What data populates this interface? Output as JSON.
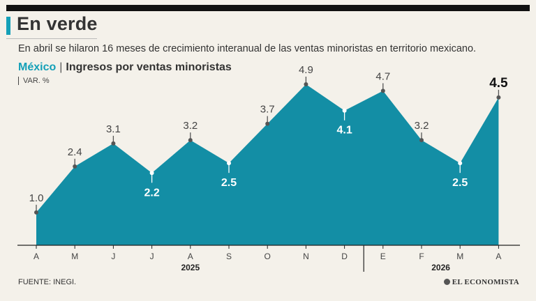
{
  "title": "En verde",
  "subtitle": "En abril se hilaron 16 meses de crecimiento interanual de las ventas minoristas en territorio mexicano.",
  "chart_heading": {
    "country": "México",
    "separator": "|",
    "label": "Ingresos por ventas minoristas"
  },
  "unit_label": "VAR. %",
  "source": "FUENTE:  INEGI.",
  "brand": "EL ECONOMISTA",
  "colors": {
    "area": "#138ea5",
    "accent": "#14a0b8",
    "text": "#333333",
    "background": "#f4f1ea"
  },
  "chart_data": {
    "type": "area",
    "categories": [
      "A",
      "M",
      "J",
      "J",
      "A",
      "S",
      "O",
      "N",
      "D",
      "E",
      "F",
      "M",
      "A"
    ],
    "year_labels": [
      {
        "label": "2025",
        "span": [
          0,
          8
        ]
      },
      {
        "label": "2026",
        "span": [
          9,
          12
        ]
      }
    ],
    "values": [
      1.0,
      2.4,
      3.1,
      2.2,
      3.2,
      2.5,
      3.7,
      4.9,
      4.1,
      4.7,
      3.2,
      2.5,
      4.5
    ],
    "value_labels": [
      "1.0",
      "2.4",
      "3.1",
      "2.2",
      "3.2",
      "2.5",
      "3.7",
      "4.9",
      "4.1",
      "4.7",
      "3.2",
      "2.5",
      "4.5"
    ],
    "label_position": [
      "above",
      "above",
      "above",
      "below",
      "above",
      "below",
      "above",
      "above",
      "below",
      "above",
      "above",
      "below",
      "above-bold"
    ],
    "ylim": [
      0,
      4.9
    ],
    "grid": false
  }
}
